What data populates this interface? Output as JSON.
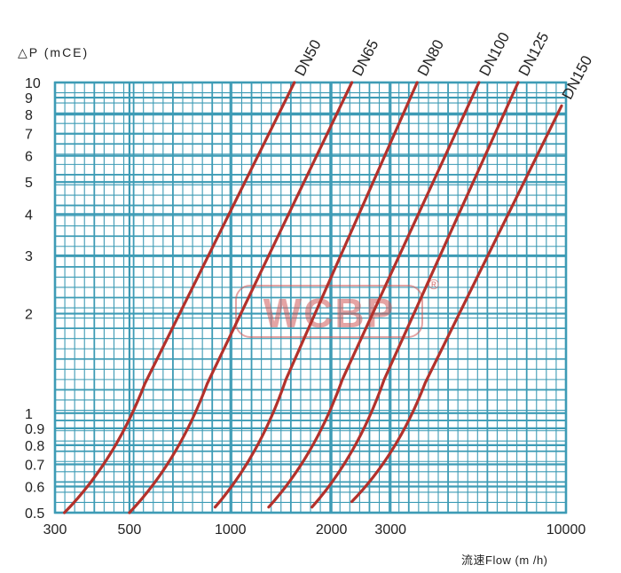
{
  "chart_data": {
    "type": "line",
    "ylabel": "△P (mCE)",
    "xlabel": "流速Flow  (m /h)",
    "x_scale": "log",
    "y_scale": "log",
    "xlim": [
      300,
      10000
    ],
    "ylim": [
      0.5,
      10
    ],
    "x_tick_labels": [
      "300",
      "500",
      "1000",
      "2000",
      "3000",
      "10000"
    ],
    "y_tick_labels": [
      "0.5",
      "0.6",
      "0.7",
      "0.8",
      "0.9",
      "1",
      "2",
      "3",
      "4",
      "5",
      "6",
      "7",
      "8",
      "9",
      "10"
    ],
    "grid": true,
    "watermark": {
      "text": "WCBP",
      "mark": "®"
    },
    "series": [
      {
        "name": "DN50",
        "x": [
          320,
          1550
        ],
        "y": [
          0.5,
          10
        ]
      },
      {
        "name": "DN65",
        "x": [
          500,
          2300
        ],
        "y": [
          0.5,
          10
        ]
      },
      {
        "name": "DN80",
        "x": [
          900,
          3600
        ],
        "y": [
          0.52,
          10
        ]
      },
      {
        "name": "DN100",
        "x": [
          1300,
          5500
        ],
        "y": [
          0.52,
          10
        ]
      },
      {
        "name": "DN125",
        "x": [
          1750,
          7200
        ],
        "y": [
          0.52,
          10
        ]
      },
      {
        "name": "DN150",
        "x": [
          2300,
          9700
        ],
        "y": [
          0.54,
          8.5
        ]
      }
    ],
    "colors": {
      "grid": "#3d9bb5",
      "curve": "#b3312b",
      "watermark": "#d05a5a"
    }
  }
}
